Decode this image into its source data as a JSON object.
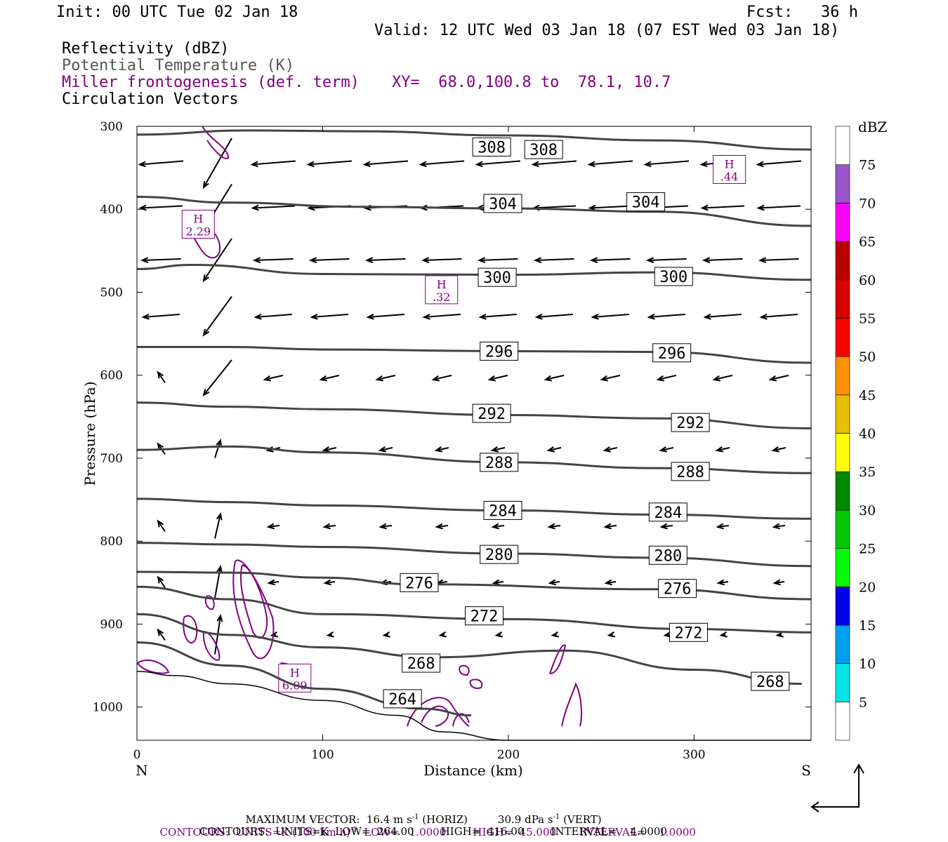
{
  "header": {
    "init": "Init: 00 UTC Tue 02 Jan 18",
    "fcst": "Fcst:   36 h",
    "valid": "Valid: 12 UTC Wed 03 Jan 18 (07 EST Wed 03 Jan 18)",
    "field1": "Reflectivity (dBZ)",
    "field2": "Potential Temperature (K)",
    "field3": "Miller frontogenesis (def. term)",
    "xy": "XY=  68.0,100.8 to  78.1, 10.7",
    "field4": "Circulation Vectors"
  },
  "colors": {
    "theta": "#444444",
    "fronto": "#800080",
    "terrain": "#000000",
    "vector": "#000000"
  },
  "chart_data": {
    "type": "cross-section",
    "xlabel": "Distance (km)",
    "ylabel": "Pressure (hPa)",
    "xlim": [
      0,
      363
    ],
    "ylim": [
      1040,
      300
    ],
    "x_ticks": [
      "0",
      "100",
      "200",
      "300"
    ],
    "x_tick_values": [
      0,
      100,
      200,
      300
    ],
    "y_ticks": [
      "300",
      "400",
      "500",
      "600",
      "700",
      "800",
      "900",
      "1000"
    ],
    "y_tick_values": [
      300,
      400,
      500,
      600,
      700,
      800,
      900,
      1000
    ],
    "left_end": "N",
    "right_end": "S",
    "theta_contours": [
      {
        "label": "308",
        "points": [
          [
            0,
            310
          ],
          [
            60,
            305
          ],
          [
            120,
            306
          ],
          [
            200,
            311
          ],
          [
            280,
            317
          ],
          [
            363,
            328
          ]
        ],
        "label_at": [
          [
            191,
            325
          ],
          [
            219,
            328
          ]
        ]
      },
      {
        "label": "304",
        "points": [
          [
            0,
            385
          ],
          [
            50,
            392
          ],
          [
            120,
            397
          ],
          [
            200,
            399
          ],
          [
            280,
            403
          ],
          [
            363,
            420
          ]
        ],
        "label_at": [
          [
            197,
            393
          ],
          [
            274,
            391
          ]
        ]
      },
      {
        "label": "300",
        "points": [
          [
            0,
            472
          ],
          [
            30,
            467
          ],
          [
            100,
            478
          ],
          [
            200,
            479
          ],
          [
            280,
            476
          ],
          [
            363,
            485
          ]
        ],
        "label_at": [
          [
            194,
            482
          ],
          [
            289,
            481
          ]
        ]
      },
      {
        "label": "296",
        "points": [
          [
            0,
            566
          ],
          [
            50,
            566
          ],
          [
            100,
            569
          ],
          [
            200,
            571
          ],
          [
            280,
            572
          ],
          [
            363,
            585
          ]
        ],
        "label_at": [
          [
            195,
            571
          ],
          [
            288,
            573
          ]
        ]
      },
      {
        "label": "292",
        "points": [
          [
            0,
            633
          ],
          [
            50,
            638
          ],
          [
            100,
            641
          ],
          [
            200,
            648
          ],
          [
            280,
            652
          ],
          [
            363,
            664
          ]
        ],
        "label_at": [
          [
            191,
            646
          ],
          [
            298,
            657
          ]
        ]
      },
      {
        "label": "288",
        "points": [
          [
            0,
            690
          ],
          [
            50,
            686
          ],
          [
            100,
            693
          ],
          [
            200,
            705
          ],
          [
            280,
            712
          ],
          [
            363,
            718
          ]
        ],
        "label_at": [
          [
            195,
            705
          ],
          [
            298,
            716
          ]
        ]
      },
      {
        "label": "284",
        "points": [
          [
            0,
            749
          ],
          [
            50,
            753
          ],
          [
            100,
            757
          ],
          [
            200,
            763
          ],
          [
            280,
            768
          ],
          [
            363,
            773
          ]
        ],
        "label_at": [
          [
            197,
            763
          ],
          [
            286,
            765
          ]
        ]
      },
      {
        "label": "280",
        "points": [
          [
            0,
            802
          ],
          [
            50,
            804
          ],
          [
            100,
            807
          ],
          [
            200,
            815
          ],
          [
            280,
            820
          ],
          [
            363,
            830
          ]
        ],
        "label_at": [
          [
            195,
            816
          ],
          [
            286,
            817
          ]
        ]
      },
      {
        "label": "276",
        "points": [
          [
            0,
            837
          ],
          [
            50,
            838
          ],
          [
            100,
            844
          ],
          [
            150,
            852
          ],
          [
            280,
            858
          ],
          [
            363,
            870
          ]
        ],
        "label_at": [
          [
            152,
            850
          ],
          [
            291,
            857
          ]
        ]
      },
      {
        "label": "272",
        "points": [
          [
            0,
            855
          ],
          [
            50,
            870
          ],
          [
            100,
            888
          ],
          [
            200,
            894
          ],
          [
            300,
            906
          ],
          [
            363,
            910
          ]
        ],
        "label_at": [
          [
            187,
            890
          ],
          [
            297,
            910
          ]
        ]
      },
      {
        "label": "268",
        "points": [
          [
            0,
            888
          ],
          [
            50,
            913
          ],
          [
            100,
            928
          ],
          [
            160,
            940
          ],
          [
            230,
            932
          ],
          [
            300,
            955
          ],
          [
            358,
            972
          ]
        ],
        "label_at": [
          [
            153,
            947
          ],
          [
            341,
            969
          ]
        ]
      },
      {
        "label": "264",
        "points": [
          [
            0,
            922
          ],
          [
            50,
            950
          ],
          [
            100,
            978
          ],
          [
            155,
            1002
          ],
          [
            180,
            1010
          ]
        ],
        "label_at": [
          [
            143,
            990
          ]
        ]
      }
    ],
    "fronto_max": [
      {
        "label": "H",
        "value": "2.29",
        "at": [
          33,
          418
        ]
      },
      {
        "label": "H",
        "value": ".44",
        "at": [
          319,
          352
        ]
      },
      {
        "label": "H",
        "value": ".32",
        "at": [
          164,
          497
        ]
      },
      {
        "label": "H",
        "value": "6.09",
        "at": [
          85,
          965
        ]
      }
    ],
    "colorbar": {
      "title": "dBZ",
      "levels": [
        "5",
        "10",
        "15",
        "20",
        "25",
        "30",
        "35",
        "40",
        "45",
        "50",
        "55",
        "60",
        "65",
        "70",
        "75"
      ],
      "colors": [
        "#ffffff",
        "#00e5e5",
        "#00a0f0",
        "#0000f0",
        "#00ff00",
        "#00c800",
        "#008800",
        "#ffff00",
        "#e6c000",
        "#ff9000",
        "#ff0000",
        "#d80000",
        "#b80000",
        "#ff00ff",
        "#9955c9",
        "#ffffff"
      ]
    },
    "vectors_max": "16.4 m s-1 (HORIZ), 30.9 dPa s-1 (VERT)"
  },
  "footer": {
    "maxvec_prefix": "MAXIMUM VECTOR:  16.4 m s",
    "maxvec_sup1": "-1",
    "maxvec_mid": " (HORIZ)         30.9 dPa s",
    "maxvec_sup2": "-1",
    "maxvec_suffix": " (VERT)",
    "cont1_prefix": "CONTOURS:  UNITS=K (100 km h)",
    "cont1_sup": "-1",
    "cont1_suffix": "  LOW=   1.0000        HIGH=  45.000       INTERVAL=    1.0000",
    "cont2": "CONTOURS:  UNITS=K  LOW=  264.00        HIGH=  416.00        INTERVAL=    4.0000"
  }
}
